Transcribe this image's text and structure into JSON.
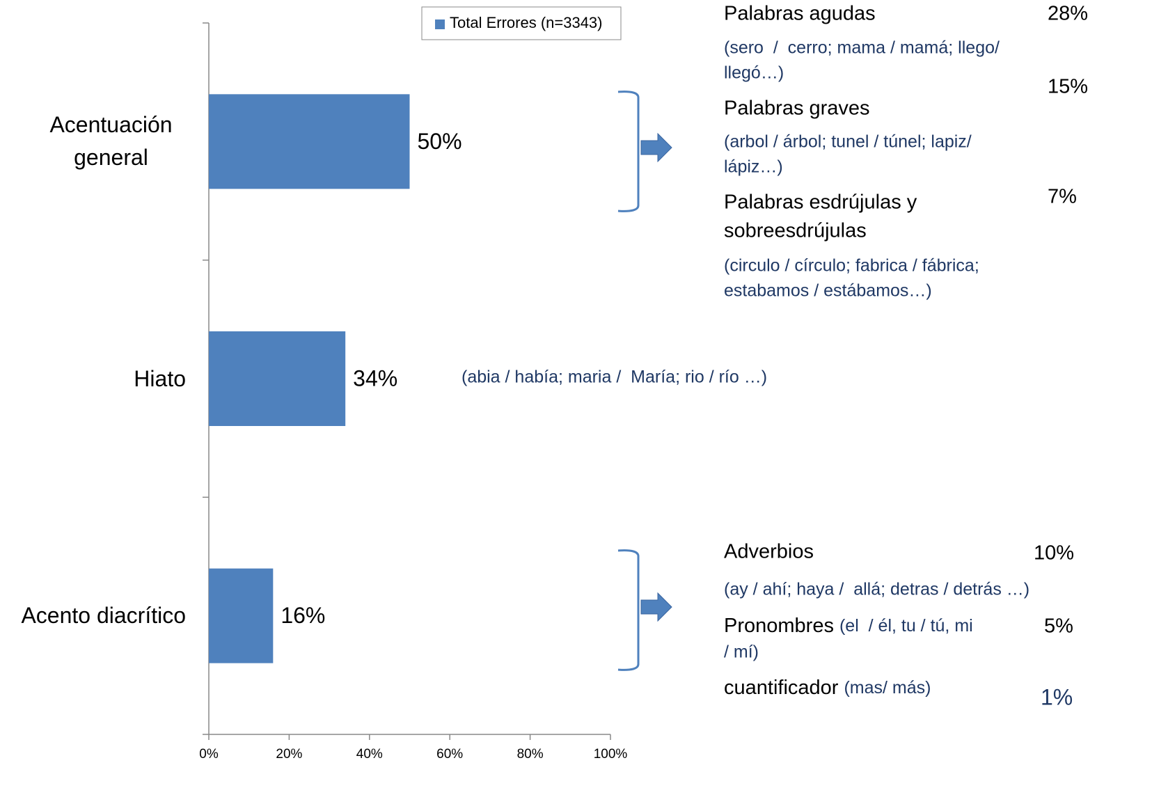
{
  "chart_data": {
    "type": "bar",
    "orientation": "horizontal",
    "categories": [
      "Acentuación general",
      "Hiato",
      "Acento diacrítico"
    ],
    "series": [
      {
        "name": "Total Errores (n=3343)",
        "color": "#4f81bd",
        "values": [
          50,
          34,
          16
        ],
        "value_labels": [
          "50%",
          "34%",
          "16%"
        ]
      }
    ],
    "xlim": [
      0,
      100
    ],
    "xticks": [
      {
        "value": 0,
        "label": "0%"
      },
      {
        "value": 20,
        "label": "20%"
      },
      {
        "value": 40,
        "label": "40%"
      },
      {
        "value": 60,
        "label": "60%"
      },
      {
        "value": 80,
        "label": "80%"
      },
      {
        "value": 100,
        "label": "100%"
      }
    ],
    "legend": "top",
    "notes": {
      "acentuacion": [
        {
          "heading": [
            "Palabras agudas"
          ],
          "example": [
            "(sero  /  cerro; mama / mamá; llego/",
            "llegó…)"
          ],
          "percent": "28%"
        },
        {
          "heading": [
            "Palabras graves"
          ],
          "example": [
            "(arbol / árbol; tunel / túnel; lapiz/",
            "lápiz…)"
          ],
          "percent": "15%"
        },
        {
          "heading": [
            "Palabras esdrújulas y",
            "sobreesdrújulas"
          ],
          "example": [
            "(circulo / círculo; fabrica / fábrica;",
            "estabamos / estábamos…)"
          ],
          "percent": "7%"
        }
      ],
      "hiato": "(abia / había; maria /  María; rio / río …)",
      "diacritico": [
        {
          "heading": "Adverbios",
          "example": [
            "(ay / ahí; haya /  allá; detras / detrás …)"
          ],
          "percent": "10%"
        },
        {
          "heading": "Pronombres",
          "example": [
            "(el  / él, tu / tú, mi",
            "/ mí)"
          ],
          "percent": "5%"
        },
        {
          "heading": "cuantificador",
          "example": [
            "(mas/ más)"
          ],
          "percent": "1%"
        }
      ]
    }
  }
}
